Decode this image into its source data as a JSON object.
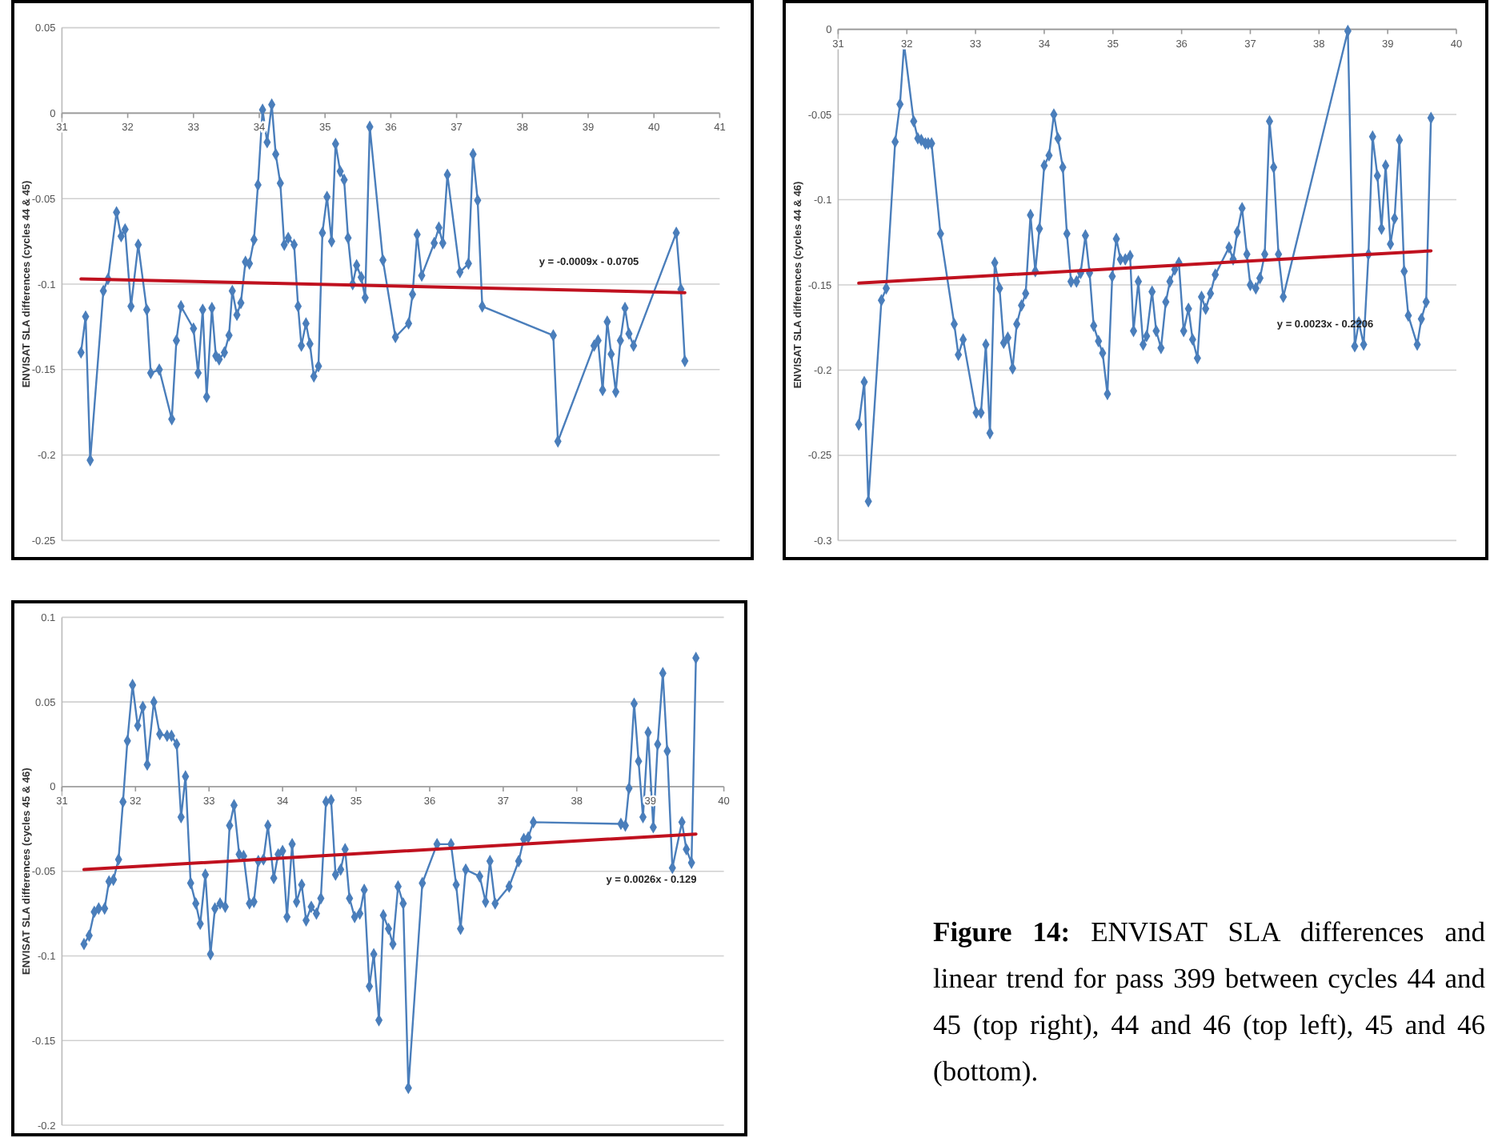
{
  "chart_data": [
    {
      "type": "line",
      "ylabel": "ENVISAT SLA differences (cycles 44 & 45)",
      "xlim": [
        31,
        41
      ],
      "xticks": [
        31,
        32,
        33,
        34,
        35,
        36,
        37,
        38,
        39,
        40,
        41
      ],
      "ylim": [
        -0.25,
        0.05
      ],
      "yticks": [
        0.05,
        0,
        -0.05,
        -0.1,
        -0.15,
        -0.2,
        -0.25
      ],
      "grid": "y",
      "marker": "diamond",
      "series": [
        {
          "type": "line",
          "color": "#4a7ebb",
          "x": [
            31.29,
            31.36,
            31.43,
            31.63,
            31.7,
            31.83,
            31.9,
            31.96,
            32.05,
            32.16,
            32.29,
            32.35,
            32.48,
            32.67,
            32.74,
            32.81,
            33.0,
            33.07,
            33.14,
            33.2,
            33.28,
            33.34,
            33.39,
            33.47,
            33.54,
            33.59,
            33.66,
            33.72,
            33.79,
            33.85,
            33.92,
            33.98,
            34.05,
            34.12,
            34.19,
            34.25,
            34.32,
            34.38,
            34.44,
            34.53,
            34.59,
            34.64,
            34.71,
            34.77,
            34.83,
            34.9,
            34.96,
            35.03,
            35.1,
            35.16,
            35.23,
            35.29,
            35.35,
            35.42,
            35.48,
            35.55,
            35.61,
            35.68,
            35.88,
            36.07,
            36.27,
            36.33,
            36.4,
            36.47,
            36.66,
            36.73,
            36.79,
            36.86,
            37.05,
            37.18,
            37.25,
            37.32,
            37.39,
            38.47,
            38.54,
            39.09,
            39.15,
            39.22,
            39.29,
            39.35,
            39.42,
            39.49,
            39.56,
            39.62,
            39.69,
            40.34,
            40.41,
            40.47
          ],
          "values": [
            -0.14,
            -0.119,
            -0.203,
            -0.104,
            -0.097,
            -0.058,
            -0.072,
            -0.068,
            -0.113,
            -0.077,
            -0.115,
            -0.152,
            -0.15,
            -0.179,
            -0.133,
            -0.113,
            -0.126,
            -0.152,
            -0.115,
            -0.166,
            -0.114,
            -0.142,
            -0.144,
            -0.14,
            -0.13,
            -0.104,
            -0.118,
            -0.111,
            -0.087,
            -0.088,
            -0.074,
            -0.042,
            0.002,
            -0.017,
            0.005,
            -0.024,
            -0.041,
            -0.077,
            -0.073,
            -0.077,
            -0.113,
            -0.136,
            -0.123,
            -0.135,
            -0.154,
            -0.148,
            -0.07,
            -0.049,
            -0.075,
            -0.018,
            -0.034,
            -0.039,
            -0.073,
            -0.1,
            -0.089,
            -0.096,
            -0.108,
            -0.008,
            -0.086,
            -0.131,
            -0.123,
            -0.106,
            -0.071,
            -0.095,
            -0.076,
            -0.067,
            -0.076,
            -0.036,
            -0.093,
            -0.088,
            -0.024,
            -0.051,
            -0.113,
            -0.13,
            -0.192,
            -0.136,
            -0.133,
            -0.162,
            -0.122,
            -0.141,
            -0.163,
            -0.133,
            -0.114,
            -0.129,
            -0.136,
            -0.07,
            -0.103,
            -0.145
          ]
        },
        {
          "type": "line",
          "color": "#c0111f",
          "marker": "none",
          "x": [
            31.29,
            40.47
          ],
          "values": [
            -0.097,
            -0.105
          ]
        }
      ],
      "annotations": [
        "y = -0.0009x - 0.0705"
      ]
    },
    {
      "type": "line",
      "ylabel": "ENVISAT SLA differences (cycles 44 & 46)",
      "xlim": [
        31,
        40
      ],
      "xticks": [
        31,
        32,
        33,
        34,
        35,
        36,
        37,
        38,
        39,
        40
      ],
      "ylim": [
        -0.3,
        0
      ],
      "yticks": [
        0,
        -0.05,
        -0.1,
        -0.15,
        -0.2,
        -0.25,
        -0.3
      ],
      "grid": "y",
      "marker": "diamond",
      "series": [
        {
          "type": "line",
          "color": "#4a7ebb",
          "x": [
            31.3,
            31.38,
            31.44,
            31.63,
            31.7,
            31.83,
            31.9,
            31.96,
            32.1,
            32.16,
            32.21,
            32.27,
            32.31,
            32.36,
            32.49,
            32.69,
            32.75,
            32.82,
            33.01,
            33.08,
            33.15,
            33.21,
            33.28,
            33.35,
            33.41,
            33.47,
            33.54,
            33.6,
            33.67,
            33.73,
            33.8,
            33.87,
            33.93,
            34.0,
            34.07,
            34.14,
            34.2,
            34.27,
            34.33,
            34.39,
            34.47,
            34.53,
            34.6,
            34.66,
            34.72,
            34.79,
            34.85,
            34.92,
            34.99,
            35.05,
            35.11,
            35.18,
            35.25,
            35.3,
            35.37,
            35.44,
            35.49,
            35.57,
            35.63,
            35.7,
            35.77,
            35.83,
            35.9,
            35.96,
            36.03,
            36.1,
            36.16,
            36.23,
            36.29,
            36.35,
            36.42,
            36.49,
            36.69,
            36.75,
            36.81,
            36.88,
            36.95,
            37.0,
            37.08,
            37.14,
            37.21,
            37.28,
            37.34,
            37.41,
            37.48,
            38.42,
            38.52,
            38.58,
            38.65,
            38.72,
            38.78,
            38.85,
            38.91,
            38.97,
            39.04,
            39.1,
            39.17,
            39.24,
            39.3,
            39.43,
            39.49,
            39.56,
            39.63
          ],
          "values": [
            -0.232,
            -0.207,
            -0.277,
            -0.159,
            -0.152,
            -0.066,
            -0.044,
            -0.009,
            -0.054,
            -0.064,
            -0.065,
            -0.067,
            -0.067,
            -0.067,
            -0.12,
            -0.173,
            -0.191,
            -0.182,
            -0.225,
            -0.225,
            -0.185,
            -0.237,
            -0.137,
            -0.152,
            -0.184,
            -0.181,
            -0.199,
            -0.173,
            -0.162,
            -0.155,
            -0.109,
            -0.142,
            -0.117,
            -0.08,
            -0.074,
            -0.05,
            -0.064,
            -0.081,
            -0.12,
            -0.148,
            -0.148,
            -0.143,
            -0.121,
            -0.143,
            -0.174,
            -0.183,
            -0.19,
            -0.214,
            -0.145,
            -0.123,
            -0.135,
            -0.135,
            -0.133,
            -0.177,
            -0.148,
            -0.185,
            -0.18,
            -0.154,
            -0.177,
            -0.187,
            -0.16,
            -0.148,
            -0.141,
            -0.137,
            -0.177,
            -0.164,
            -0.182,
            -0.193,
            -0.157,
            -0.164,
            -0.155,
            -0.144,
            -0.128,
            -0.135,
            -0.119,
            -0.105,
            -0.132,
            -0.15,
            -0.152,
            -0.146,
            -0.132,
            -0.054,
            -0.081,
            -0.132,
            -0.157,
            -0.001,
            -0.186,
            -0.172,
            -0.185,
            -0.132,
            -0.063,
            -0.086,
            -0.117,
            -0.08,
            -0.126,
            -0.111,
            -0.065,
            -0.142,
            -0.168,
            -0.185,
            -0.17,
            -0.16,
            -0.052
          ]
        },
        {
          "type": "line",
          "color": "#c0111f",
          "marker": "none",
          "x": [
            31.3,
            39.63
          ],
          "values": [
            -0.149,
            -0.13
          ]
        }
      ],
      "annotations": [
        "y = 0.0023x - 0.2206"
      ]
    },
    {
      "type": "line",
      "ylabel": "ENVISAT SLA differences (cycles 45 & 46)",
      "xlim": [
        31,
        40
      ],
      "xticks": [
        31,
        32,
        33,
        34,
        35,
        36,
        37,
        38,
        39,
        40
      ],
      "ylim": [
        -0.2,
        0.1
      ],
      "yticks": [
        0.1,
        0.05,
        0,
        -0.05,
        -0.1,
        -0.15,
        -0.2
      ],
      "grid": "y",
      "marker": "diamond",
      "series": [
        {
          "type": "line",
          "color": "#4a7ebb",
          "x": [
            31.3,
            31.37,
            31.44,
            31.5,
            31.58,
            31.64,
            31.7,
            31.77,
            31.83,
            31.89,
            31.96,
            32.03,
            32.1,
            32.16,
            32.25,
            32.33,
            32.43,
            32.49,
            32.56,
            32.62,
            32.68,
            32.75,
            32.82,
            32.88,
            32.95,
            33.02,
            33.08,
            33.15,
            33.22,
            33.28,
            33.34,
            33.41,
            33.47,
            33.55,
            33.61,
            33.67,
            33.74,
            33.8,
            33.88,
            33.94,
            34.0,
            34.06,
            34.13,
            34.19,
            34.26,
            34.32,
            34.39,
            34.46,
            34.52,
            34.59,
            34.66,
            34.72,
            34.79,
            34.85,
            34.91,
            34.98,
            35.05,
            35.11,
            35.18,
            35.24,
            35.31,
            35.37,
            35.44,
            35.5,
            35.57,
            35.64,
            35.71,
            35.9,
            36.1,
            36.29,
            36.36,
            36.42,
            36.49,
            36.68,
            36.76,
            36.82,
            36.89,
            37.08,
            37.21,
            37.28,
            37.34,
            37.41,
            38.6,
            38.66,
            38.71,
            38.78,
            38.84,
            38.9,
            38.97,
            39.04,
            39.1,
            39.17,
            39.23,
            39.3,
            39.43,
            39.49,
            39.56,
            39.62
          ],
          "values": [
            -0.093,
            -0.088,
            -0.074,
            -0.072,
            -0.072,
            -0.056,
            -0.055,
            -0.043,
            -0.009,
            0.027,
            0.06,
            0.036,
            0.047,
            0.013,
            0.05,
            0.031,
            0.03,
            0.03,
            0.025,
            -0.018,
            0.006,
            -0.057,
            -0.069,
            -0.081,
            -0.052,
            -0.099,
            -0.072,
            -0.069,
            -0.071,
            -0.023,
            -0.011,
            -0.04,
            -0.041,
            -0.069,
            -0.068,
            -0.044,
            -0.043,
            -0.023,
            -0.054,
            -0.04,
            -0.038,
            -0.077,
            -0.034,
            -0.068,
            -0.058,
            -0.079,
            -0.071,
            -0.075,
            -0.066,
            -0.009,
            -0.008,
            -0.052,
            -0.049,
            -0.037,
            -0.066,
            -0.077,
            -0.075,
            -0.061,
            -0.118,
            -0.099,
            -0.138,
            -0.076,
            -0.084,
            -0.093,
            -0.059,
            -0.069,
            -0.178,
            -0.057,
            -0.034,
            -0.034,
            -0.058,
            -0.084,
            -0.049,
            -0.053,
            -0.068,
            -0.044,
            -0.069,
            -0.059,
            -0.044,
            -0.031,
            -0.03,
            -0.021,
            -0.022,
            -0.023,
            -0.001,
            0.049,
            0.015,
            -0.018,
            0.032,
            -0.024,
            0.025,
            0.067,
            0.021,
            -0.048,
            -0.021,
            -0.037,
            -0.045,
            0.076
          ]
        },
        {
          "type": "line",
          "color": "#c0111f",
          "marker": "none",
          "x": [
            31.3,
            39.62
          ],
          "values": [
            -0.049,
            -0.028
          ]
        }
      ],
      "annotations": [
        "y = 0.0026x - 0.129"
      ]
    },
    {
      "type": "other",
      "title": "Figure 14:",
      "annotations": [
        "ENVISAT SLA differences and linear trend for pass 399 between cycles 44 and 45 (top right), 44 and 46 (top left), 45 and 46 (bottom)."
      ]
    }
  ]
}
